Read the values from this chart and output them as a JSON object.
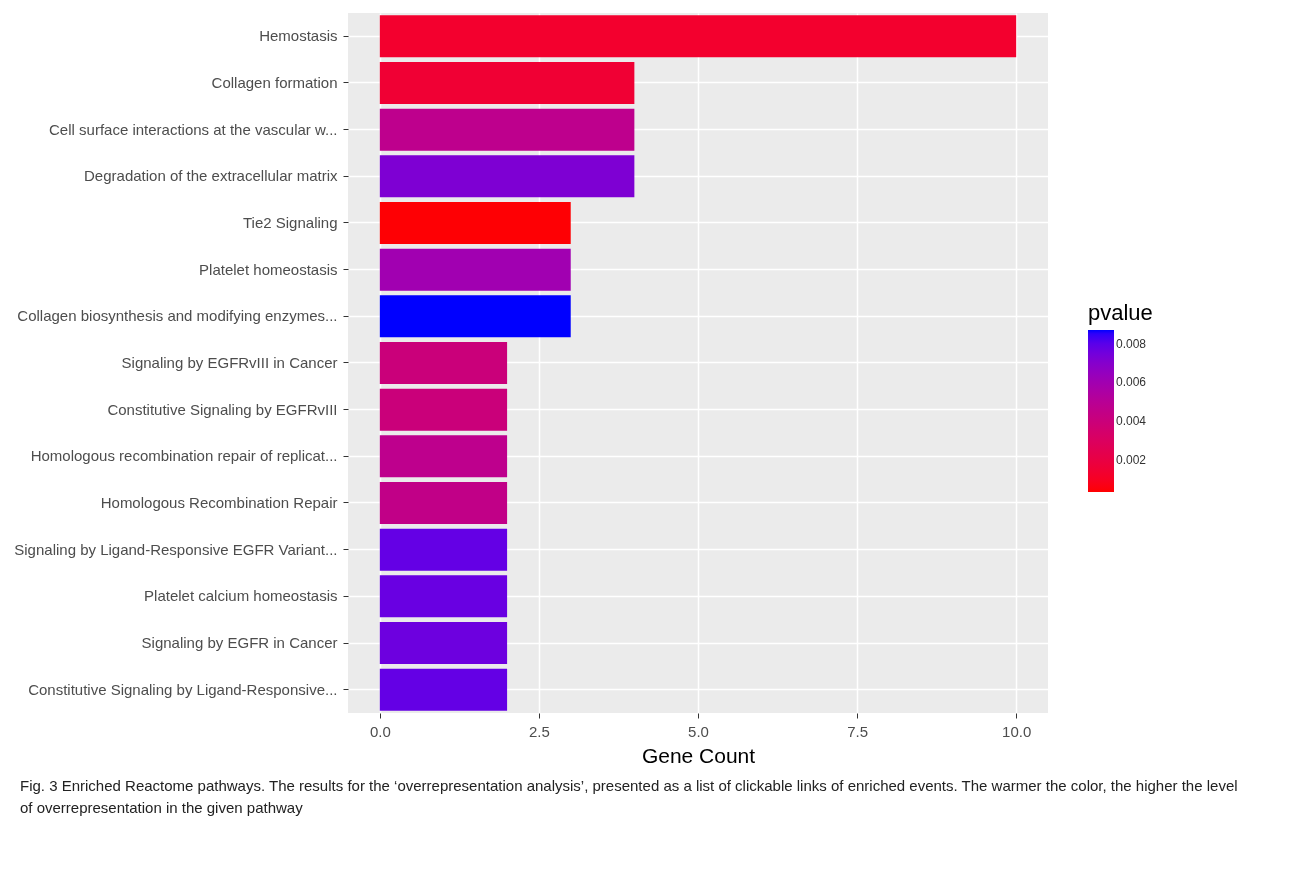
{
  "chart_data": {
    "type": "bar",
    "orientation": "horizontal",
    "xlabel": "Gene Count",
    "clabel": "pvalue",
    "categories": [
      "Hemostasis",
      "Collagen formation",
      "Cell surface interactions at the vascular w...",
      "Degradation of the extracellular matrix",
      "Tie2 Signaling",
      "Platelet homeostasis",
      "Collagen biosynthesis and modifying enzymes...",
      "Signaling by EGFRvIII in Cancer",
      "Constitutive Signaling by EGFRvIII",
      "Homologous recombination repair of replicat...",
      "Homologous Recombination Repair",
      "Signaling by Ligand-Responsive EGFR Variant...",
      "Platelet calcium homeostasis",
      "Signaling by EGFR in Cancer",
      "Constitutive Signaling by Ligand-Responsive..."
    ],
    "values": [
      10,
      4,
      4,
      4,
      3,
      3,
      3,
      2,
      2,
      2,
      2,
      2,
      2,
      2,
      2
    ],
    "cvalues": [
      0.0013,
      0.0015,
      0.0047,
      0.0072,
      0.0004,
      0.006,
      0.0087,
      0.004,
      0.004,
      0.0047,
      0.0045,
      0.0078,
      0.0077,
      0.0076,
      0.0078
    ],
    "clim": [
      0.00035,
      0.0087
    ],
    "cticks": [
      0.002,
      0.004,
      0.006,
      0.008
    ],
    "xlim": [
      -0.5,
      10.5
    ],
    "xticks": [
      {
        "value": 0,
        "label": "0.0"
      },
      2.5,
      {
        "value": 5,
        "label": "5.0"
      },
      7.5,
      {
        "value": 10,
        "label": "10.0"
      }
    ],
    "grid": true,
    "annotations": [
      "Fig. 3 Enriched Reactome pathways. The results for the ‘overrepresentation analysis’, presented as a list of clickable links of enriched events. The warmer the color, the higher the level of overrepresentation in the given pathway"
    ]
  }
}
